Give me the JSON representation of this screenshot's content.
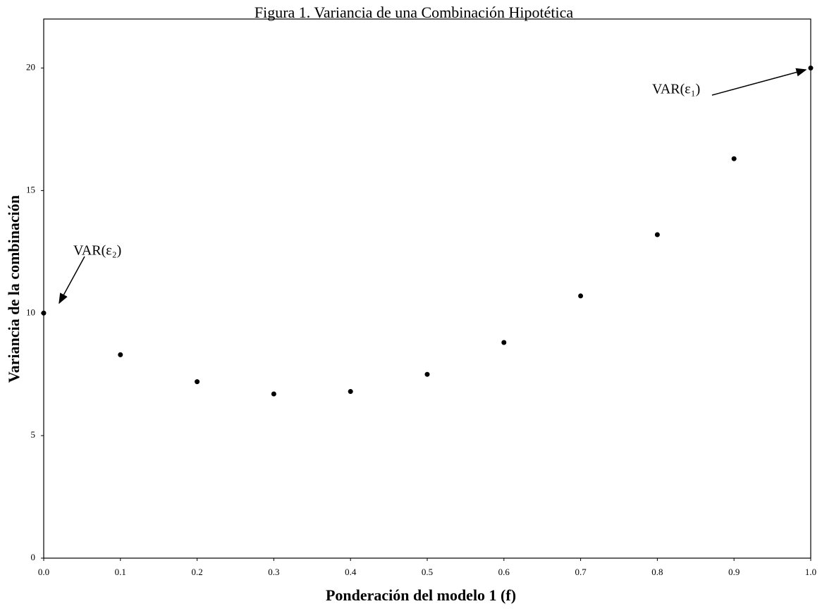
{
  "chart_data": {
    "type": "scatter",
    "title": "Figura 1. Variancia de una Combinación Hipotética",
    "x_label": "Ponderación del modelo 1 (f)",
    "y_label": "Variancia de la combinación",
    "x": [
      0,
      0.1,
      0.2,
      0.3,
      0.4,
      0.5,
      0.6,
      0.7,
      0.8,
      0.9,
      1
    ],
    "values": [
      10,
      8.3,
      7.2,
      6.7,
      6.8,
      7.5,
      8.8,
      10.7,
      13.2,
      16.3,
      20
    ],
    "color": "#000000",
    "xlim": [
      0,
      1
    ],
    "xticks": [
      {
        "value": 0,
        "label": "0.0"
      },
      0.1,
      0.2,
      0.3,
      0.4,
      0.5,
      0.6,
      0.7,
      0.8,
      0.9,
      {
        "value": 1,
        "label": "1.0"
      }
    ],
    "ylim": [
      0,
      22
    ],
    "yticks": [
      0,
      5,
      10,
      15,
      20
    ],
    "annotations": [
      {
        "text": "VAR(ε₁)"
      },
      {
        "text": "VAR(ε₂)"
      }
    ]
  }
}
